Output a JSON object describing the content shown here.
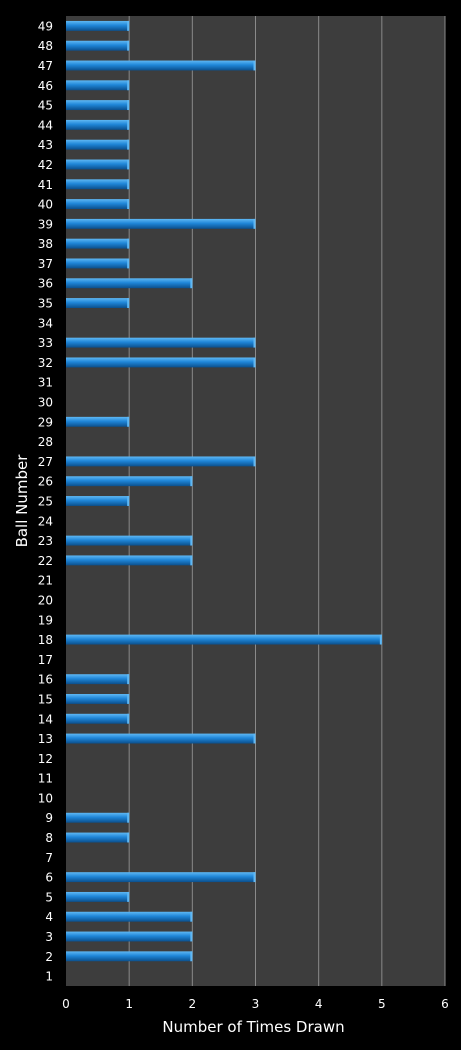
{
  "chart_data": {
    "type": "bar",
    "orientation": "horizontal",
    "xlabel": "Number of Times Drawn",
    "ylabel": "Ball Number",
    "xlim": [
      0,
      6
    ],
    "x_ticks": [
      0,
      1,
      2,
      3,
      4,
      5,
      6
    ],
    "grid": true,
    "legend": "none",
    "categories": [
      "1",
      "2",
      "3",
      "4",
      "5",
      "6",
      "7",
      "8",
      "9",
      "10",
      "11",
      "12",
      "13",
      "14",
      "15",
      "16",
      "17",
      "18",
      "19",
      "20",
      "21",
      "22",
      "23",
      "24",
      "25",
      "26",
      "27",
      "28",
      "29",
      "30",
      "31",
      "32",
      "33",
      "34",
      "35",
      "36",
      "37",
      "38",
      "39",
      "40",
      "41",
      "42",
      "43",
      "44",
      "45",
      "46",
      "47",
      "48",
      "49"
    ],
    "values": [
      0,
      2,
      2,
      2,
      1,
      3,
      0,
      1,
      1,
      0,
      0,
      0,
      3,
      1,
      1,
      1,
      0,
      5,
      0,
      0,
      0,
      2,
      2,
      0,
      1,
      2,
      3,
      0,
      1,
      0,
      0,
      3,
      3,
      0,
      1,
      2,
      1,
      1,
      3,
      1,
      1,
      1,
      1,
      1,
      1,
      1,
      3,
      1,
      1
    ]
  },
  "colors": {
    "background": "#000000",
    "plot_area": "#3d3d3d",
    "gridline": "#8a8a8a",
    "bar_top": "#5fb8f4",
    "bar_mid": "#1f86d8",
    "bar_bottom": "#0b4f8c",
    "text": "#ffffff"
  }
}
